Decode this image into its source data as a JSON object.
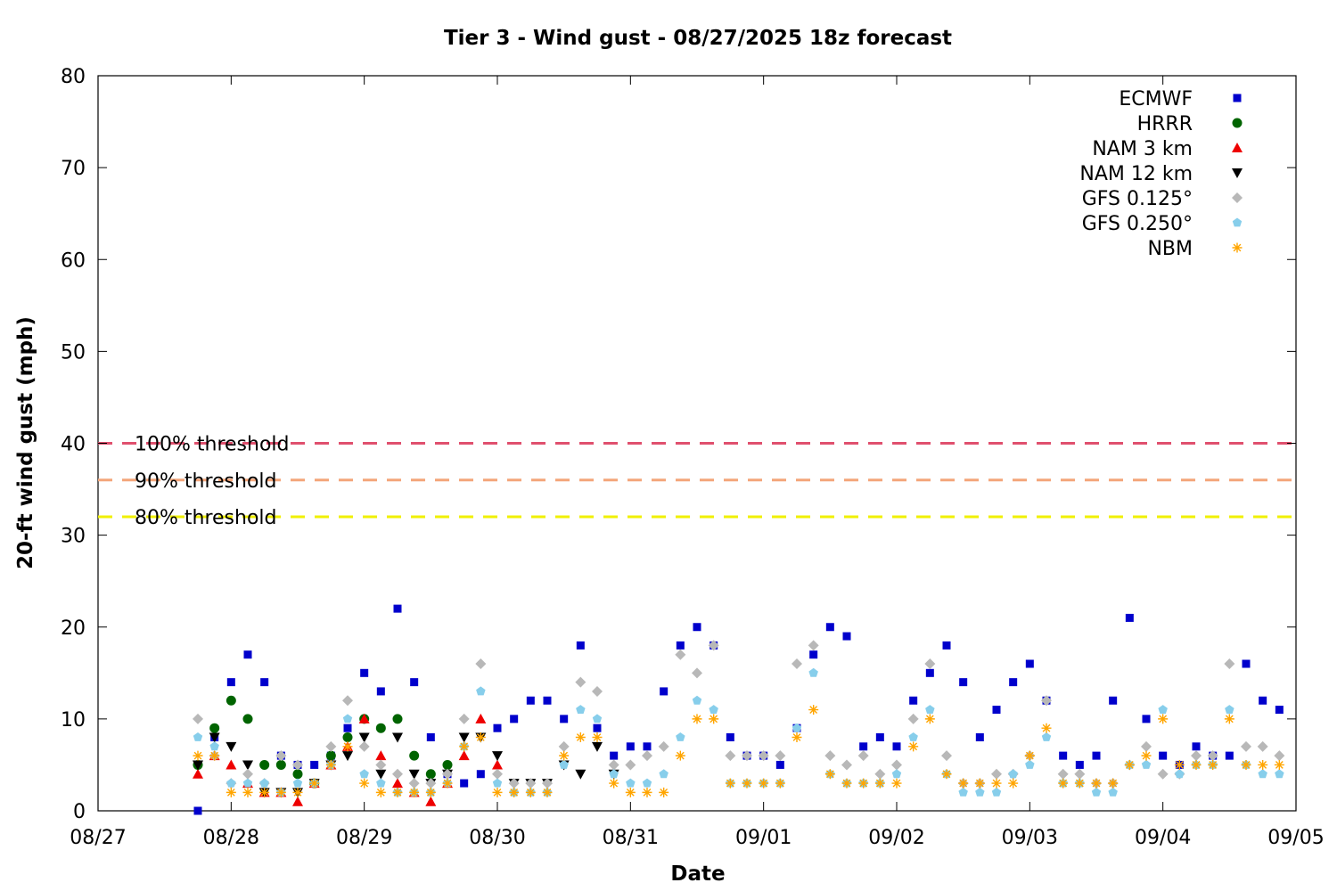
{
  "chart_data": {
    "type": "scatter",
    "title": "Tier 3 - Wind gust - 08/27/2025 18z forecast",
    "xlabel": "Date",
    "ylabel": "20-ft wind gust (mph)",
    "xlim": [
      "2025-08-27T00:00",
      "2025-09-05T00:00"
    ],
    "ylim": [
      0,
      80
    ],
    "yticks": [
      0,
      10,
      20,
      30,
      40,
      50,
      60,
      70,
      80
    ],
    "xticks": [
      {
        "value": "2025-08-27T00:00",
        "label": "08/27"
      },
      {
        "value": "2025-08-28T00:00",
        "label": "08/28"
      },
      {
        "value": "2025-08-29T00:00",
        "label": "08/29"
      },
      {
        "value": "2025-08-30T00:00",
        "label": "08/30"
      },
      {
        "value": "2025-08-31T00:00",
        "label": "08/31"
      },
      {
        "value": "2025-09-01T00:00",
        "label": "09/01"
      },
      {
        "value": "2025-09-02T00:00",
        "label": "09/02"
      },
      {
        "value": "2025-09-03T00:00",
        "label": "09/03"
      },
      {
        "value": "2025-09-04T00:00",
        "label": "09/04"
      },
      {
        "value": "2025-09-05T00:00",
        "label": "09/05"
      }
    ],
    "grid": false,
    "legend_position": "top-right",
    "thresholds": [
      {
        "name": "100% threshold",
        "value": 40,
        "color": "#e0506e"
      },
      {
        "name": "90% threshold",
        "value": 36,
        "color": "#f4a67a"
      },
      {
        "name": "80% threshold",
        "value": 32,
        "color": "#f0f000"
      }
    ],
    "series": [
      {
        "name": "ECMWF",
        "marker": "square",
        "color": "#0000cc",
        "x": [
          "2025-08-27T18:00",
          "2025-08-27T21:00",
          "2025-08-28T00:00",
          "2025-08-28T03:00",
          "2025-08-28T06:00",
          "2025-08-28T09:00",
          "2025-08-28T12:00",
          "2025-08-28T15:00",
          "2025-08-28T18:00",
          "2025-08-28T21:00",
          "2025-08-29T00:00",
          "2025-08-29T03:00",
          "2025-08-29T06:00",
          "2025-08-29T09:00",
          "2025-08-29T12:00",
          "2025-08-29T15:00",
          "2025-08-29T18:00",
          "2025-08-29T21:00",
          "2025-08-30T00:00",
          "2025-08-30T03:00",
          "2025-08-30T06:00",
          "2025-08-30T09:00",
          "2025-08-30T12:00",
          "2025-08-30T15:00",
          "2025-08-30T18:00",
          "2025-08-30T21:00",
          "2025-08-31T00:00",
          "2025-08-31T03:00",
          "2025-08-31T06:00",
          "2025-08-31T09:00",
          "2025-08-31T12:00",
          "2025-08-31T15:00",
          "2025-08-31T18:00",
          "2025-08-31T21:00",
          "2025-09-01T00:00",
          "2025-09-01T03:00",
          "2025-09-01T06:00",
          "2025-09-01T09:00",
          "2025-09-01T12:00",
          "2025-09-01T15:00",
          "2025-09-01T18:00",
          "2025-09-01T21:00",
          "2025-09-02T00:00",
          "2025-09-02T03:00",
          "2025-09-02T06:00",
          "2025-09-02T09:00",
          "2025-09-02T12:00",
          "2025-09-02T15:00",
          "2025-09-02T18:00",
          "2025-09-02T21:00",
          "2025-09-03T00:00",
          "2025-09-03T03:00",
          "2025-09-03T06:00",
          "2025-09-03T09:00",
          "2025-09-03T12:00",
          "2025-09-03T15:00",
          "2025-09-03T18:00",
          "2025-09-03T21:00",
          "2025-09-04T00:00",
          "2025-09-04T03:00",
          "2025-09-04T06:00",
          "2025-09-04T09:00",
          "2025-09-04T12:00",
          "2025-09-04T15:00",
          "2025-09-04T18:00",
          "2025-09-04T21:00"
        ],
        "y": [
          0,
          8,
          14,
          17,
          14,
          6,
          5,
          5,
          6,
          9,
          15,
          13,
          22,
          14,
          8,
          4,
          3,
          4,
          9,
          10,
          12,
          12,
          10,
          18,
          9,
          6,
          7,
          7,
          13,
          18,
          20,
          18,
          8,
          6,
          6,
          5,
          9,
          17,
          20,
          19,
          7,
          8,
          7,
          12,
          15,
          18,
          14,
          8,
          11,
          14,
          16,
          12,
          6,
          5,
          6,
          12,
          21,
          10,
          6,
          5,
          7,
          6,
          6,
          16,
          12,
          11
        ]
      },
      {
        "name": "HRRR",
        "marker": "circle",
        "color": "#006400",
        "x": [
          "2025-08-27T18:00",
          "2025-08-27T21:00",
          "2025-08-28T00:00",
          "2025-08-28T03:00",
          "2025-08-28T06:00",
          "2025-08-28T09:00",
          "2025-08-28T12:00",
          "2025-08-28T15:00",
          "2025-08-28T18:00",
          "2025-08-28T21:00",
          "2025-08-29T00:00",
          "2025-08-29T03:00",
          "2025-08-29T06:00",
          "2025-08-29T09:00",
          "2025-08-29T12:00",
          "2025-08-29T15:00"
        ],
        "y": [
          5,
          9,
          12,
          10,
          5,
          5,
          4,
          3,
          6,
          8,
          10,
          9,
          10,
          6,
          4,
          5
        ]
      },
      {
        "name": "NAM 3 km",
        "marker": "triangle-up",
        "color": "#ee0000",
        "x": [
          "2025-08-27T18:00",
          "2025-08-27T21:00",
          "2025-08-28T00:00",
          "2025-08-28T03:00",
          "2025-08-28T06:00",
          "2025-08-28T09:00",
          "2025-08-28T12:00",
          "2025-08-28T15:00",
          "2025-08-28T18:00",
          "2025-08-28T21:00",
          "2025-08-29T00:00",
          "2025-08-29T03:00",
          "2025-08-29T06:00",
          "2025-08-29T09:00",
          "2025-08-29T12:00",
          "2025-08-29T15:00",
          "2025-08-29T18:00",
          "2025-08-29T21:00",
          "2025-08-30T00:00"
        ],
        "y": [
          4,
          6,
          5,
          3,
          2,
          2,
          1,
          3,
          5,
          7,
          10,
          6,
          3,
          2,
          1,
          3,
          6,
          10,
          5
        ]
      },
      {
        "name": "NAM 12 km",
        "marker": "triangle-down",
        "color": "#000000",
        "x": [
          "2025-08-27T18:00",
          "2025-08-27T21:00",
          "2025-08-28T00:00",
          "2025-08-28T03:00",
          "2025-08-28T06:00",
          "2025-08-28T09:00",
          "2025-08-28T12:00",
          "2025-08-28T15:00",
          "2025-08-28T18:00",
          "2025-08-28T21:00",
          "2025-08-29T00:00",
          "2025-08-29T03:00",
          "2025-08-29T06:00",
          "2025-08-29T09:00",
          "2025-08-29T12:00",
          "2025-08-29T15:00",
          "2025-08-29T18:00",
          "2025-08-29T21:00",
          "2025-08-30T00:00",
          "2025-08-30T03:00",
          "2025-08-30T06:00",
          "2025-08-30T09:00",
          "2025-08-30T12:00",
          "2025-08-30T15:00",
          "2025-08-30T18:00",
          "2025-08-30T21:00"
        ],
        "y": [
          5,
          8,
          7,
          5,
          2,
          2,
          2,
          3,
          5,
          6,
          8,
          4,
          8,
          4,
          3,
          4,
          8,
          8,
          6,
          3,
          3,
          3,
          5,
          4,
          7,
          4
        ]
      },
      {
        "name": "GFS 0.125°",
        "marker": "diamond",
        "color": "#b8b8b8",
        "x": [
          "2025-08-27T18:00",
          "2025-08-27T21:00",
          "2025-08-28T00:00",
          "2025-08-28T03:00",
          "2025-08-28T06:00",
          "2025-08-28T09:00",
          "2025-08-28T12:00",
          "2025-08-28T15:00",
          "2025-08-28T18:00",
          "2025-08-28T21:00",
          "2025-08-29T00:00",
          "2025-08-29T03:00",
          "2025-08-29T06:00",
          "2025-08-29T09:00",
          "2025-08-29T12:00",
          "2025-08-29T15:00",
          "2025-08-29T18:00",
          "2025-08-29T21:00",
          "2025-08-30T00:00",
          "2025-08-30T03:00",
          "2025-08-30T06:00",
          "2025-08-30T09:00",
          "2025-08-30T12:00",
          "2025-08-30T15:00",
          "2025-08-30T18:00",
          "2025-08-30T21:00",
          "2025-08-31T00:00",
          "2025-08-31T03:00",
          "2025-08-31T06:00",
          "2025-08-31T09:00",
          "2025-08-31T12:00",
          "2025-08-31T15:00",
          "2025-08-31T18:00",
          "2025-08-31T21:00",
          "2025-09-01T00:00",
          "2025-09-01T03:00",
          "2025-09-01T06:00",
          "2025-09-01T09:00",
          "2025-09-01T12:00",
          "2025-09-01T15:00",
          "2025-09-01T18:00",
          "2025-09-01T21:00",
          "2025-09-02T00:00",
          "2025-09-02T03:00",
          "2025-09-02T06:00",
          "2025-09-02T09:00",
          "2025-09-02T12:00",
          "2025-09-02T15:00",
          "2025-09-02T18:00",
          "2025-09-02T21:00",
          "2025-09-03T00:00",
          "2025-09-03T03:00",
          "2025-09-03T06:00",
          "2025-09-03T09:00",
          "2025-09-03T12:00",
          "2025-09-03T15:00",
          "2025-09-03T18:00",
          "2025-09-03T21:00",
          "2025-09-04T00:00",
          "2025-09-04T03:00",
          "2025-09-04T06:00",
          "2025-09-04T09:00",
          "2025-09-04T12:00",
          "2025-09-04T15:00",
          "2025-09-04T18:00",
          "2025-09-04T21:00"
        ],
        "y": [
          10,
          6,
          3,
          4,
          3,
          6,
          5,
          3,
          7,
          12,
          7,
          5,
          4,
          3,
          3,
          4,
          10,
          16,
          4,
          3,
          3,
          3,
          7,
          14,
          13,
          5,
          5,
          6,
          7,
          17,
          15,
          18,
          6,
          6,
          6,
          6,
          16,
          18,
          6,
          5,
          6,
          4,
          5,
          10,
          16,
          6,
          3,
          3,
          4,
          4,
          6,
          12,
          4,
          4,
          3,
          3,
          5,
          7,
          4,
          4,
          6,
          6,
          16,
          7,
          7,
          6
        ]
      },
      {
        "name": "GFS 0.250°",
        "marker": "pentagon",
        "color": "#87ceeb",
        "x": [
          "2025-08-27T18:00",
          "2025-08-27T21:00",
          "2025-08-28T00:00",
          "2025-08-28T03:00",
          "2025-08-28T06:00",
          "2025-08-28T09:00",
          "2025-08-28T12:00",
          "2025-08-28T15:00",
          "2025-08-28T18:00",
          "2025-08-28T21:00",
          "2025-08-29T00:00",
          "2025-08-29T03:00",
          "2025-08-29T06:00",
          "2025-08-29T09:00",
          "2025-08-29T12:00",
          "2025-08-29T15:00",
          "2025-08-29T18:00",
          "2025-08-29T21:00",
          "2025-08-30T00:00",
          "2025-08-30T03:00",
          "2025-08-30T06:00",
          "2025-08-30T09:00",
          "2025-08-30T12:00",
          "2025-08-30T15:00",
          "2025-08-30T18:00",
          "2025-08-30T21:00",
          "2025-08-31T00:00",
          "2025-08-31T03:00",
          "2025-08-31T06:00",
          "2025-08-31T09:00",
          "2025-08-31T12:00",
          "2025-08-31T15:00",
          "2025-08-31T18:00",
          "2025-08-31T21:00",
          "2025-09-01T00:00",
          "2025-09-01T03:00",
          "2025-09-01T06:00",
          "2025-09-01T09:00",
          "2025-09-01T12:00",
          "2025-09-01T15:00",
          "2025-09-01T18:00",
          "2025-09-01T21:00",
          "2025-09-02T00:00",
          "2025-09-02T03:00",
          "2025-09-02T06:00",
          "2025-09-02T09:00",
          "2025-09-02T12:00",
          "2025-09-02T15:00",
          "2025-09-02T18:00",
          "2025-09-02T21:00",
          "2025-09-03T00:00",
          "2025-09-03T03:00",
          "2025-09-03T06:00",
          "2025-09-03T09:00",
          "2025-09-03T12:00",
          "2025-09-03T15:00",
          "2025-09-03T18:00",
          "2025-09-03T21:00",
          "2025-09-04T00:00",
          "2025-09-04T03:00",
          "2025-09-04T06:00",
          "2025-09-04T09:00",
          "2025-09-04T12:00",
          "2025-09-04T15:00",
          "2025-09-04T18:00",
          "2025-09-04T21:00"
        ],
        "y": [
          8,
          7,
          3,
          3,
          3,
          2,
          3,
          3,
          5,
          10,
          4,
          3,
          2,
          2,
          2,
          3,
          7,
          13,
          3,
          2,
          2,
          2,
          5,
          11,
          10,
          4,
          3,
          3,
          4,
          8,
          12,
          11,
          3,
          3,
          3,
          3,
          9,
          15,
          4,
          3,
          3,
          3,
          4,
          8,
          11,
          4,
          2,
          2,
          2,
          4,
          5,
          8,
          3,
          3,
          2,
          2,
          5,
          5,
          11,
          4,
          5,
          5,
          11,
          5,
          4,
          4
        ]
      },
      {
        "name": "NBM",
        "marker": "star",
        "color": "#ffa500",
        "x": [
          "2025-08-27T18:00",
          "2025-08-27T21:00",
          "2025-08-28T00:00",
          "2025-08-28T03:00",
          "2025-08-28T06:00",
          "2025-08-28T09:00",
          "2025-08-28T12:00",
          "2025-08-28T15:00",
          "2025-08-28T18:00",
          "2025-08-28T21:00",
          "2025-08-29T00:00",
          "2025-08-29T03:00",
          "2025-08-29T06:00",
          "2025-08-29T09:00",
          "2025-08-29T12:00",
          "2025-08-29T15:00",
          "2025-08-29T18:00",
          "2025-08-29T21:00",
          "2025-08-30T00:00",
          "2025-08-30T03:00",
          "2025-08-30T06:00",
          "2025-08-30T09:00",
          "2025-08-30T12:00",
          "2025-08-30T15:00",
          "2025-08-30T18:00",
          "2025-08-30T21:00",
          "2025-08-31T00:00",
          "2025-08-31T03:00",
          "2025-08-31T06:00",
          "2025-08-31T09:00",
          "2025-08-31T12:00",
          "2025-08-31T15:00",
          "2025-08-31T18:00",
          "2025-08-31T21:00",
          "2025-09-01T00:00",
          "2025-09-01T03:00",
          "2025-09-01T06:00",
          "2025-09-01T09:00",
          "2025-09-01T12:00",
          "2025-09-01T15:00",
          "2025-09-01T18:00",
          "2025-09-01T21:00",
          "2025-09-02T00:00",
          "2025-09-02T03:00",
          "2025-09-02T06:00",
          "2025-09-02T09:00",
          "2025-09-02T12:00",
          "2025-09-02T15:00",
          "2025-09-02T18:00",
          "2025-09-02T21:00",
          "2025-09-03T00:00",
          "2025-09-03T03:00",
          "2025-09-03T06:00",
          "2025-09-03T09:00",
          "2025-09-03T12:00",
          "2025-09-03T15:00",
          "2025-09-03T18:00",
          "2025-09-03T21:00",
          "2025-09-04T00:00",
          "2025-09-04T03:00",
          "2025-09-04T06:00",
          "2025-09-04T09:00",
          "2025-09-04T12:00",
          "2025-09-04T15:00",
          "2025-09-04T18:00",
          "2025-09-04T21:00"
        ],
        "y": [
          6,
          6,
          2,
          2,
          2,
          2,
          2,
          3,
          5,
          7,
          3,
          2,
          2,
          2,
          2,
          3,
          7,
          8,
          2,
          2,
          2,
          2,
          6,
          8,
          8,
          3,
          2,
          2,
          2,
          6,
          10,
          10,
          3,
          3,
          3,
          3,
          8,
          11,
          4,
          3,
          3,
          3,
          3,
          7,
          10,
          4,
          3,
          3,
          3,
          3,
          6,
          9,
          3,
          3,
          3,
          3,
          5,
          6,
          10,
          5,
          5,
          5,
          10,
          5,
          5,
          5
        ]
      }
    ]
  }
}
